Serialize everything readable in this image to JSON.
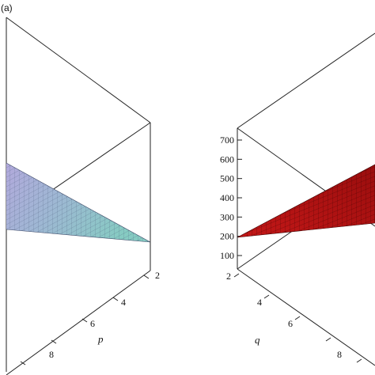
{
  "chart_data": [
    {
      "type": "surface",
      "panel_label": "(a)",
      "xlabel": "p",
      "x_ticks": [
        "2",
        "4",
        "6",
        "8"
      ],
      "surface_color": "#8fc1c4",
      "surface_color_secondary": "#a7a4d6"
    },
    {
      "type": "surface",
      "panel_label": "",
      "xlabel": "q",
      "x_ticks": [
        "2",
        "4",
        "6",
        "8"
      ],
      "z_ticks": [
        100,
        200,
        300,
        400,
        500,
        600,
        700
      ],
      "zlim": [
        100,
        700
      ],
      "surface_color": "#b01212"
    }
  ]
}
